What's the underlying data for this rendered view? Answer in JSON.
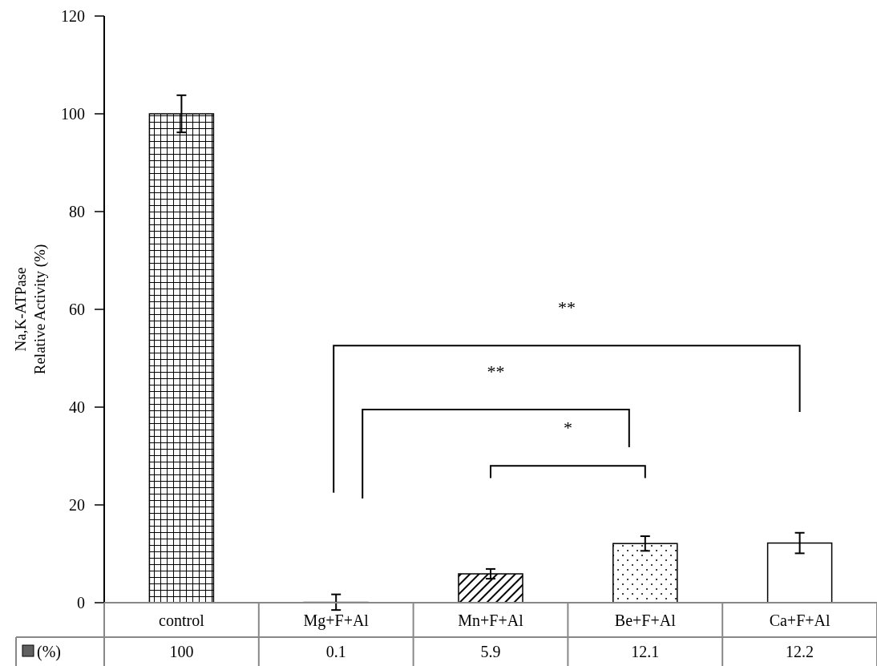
{
  "chart_data": {
    "type": "bar",
    "ylabel": "Na,K-ATPase\nRelative Activity (%)",
    "categories": [
      "control",
      "Mg+F+Al",
      "Mn+F+Al",
      "Be+F+Al",
      "Ca+F+Al"
    ],
    "values": [
      100,
      0.1,
      5.9,
      12.1,
      12.2
    ],
    "errors": [
      3.8,
      1.6,
      1.0,
      1.5,
      2.1
    ],
    "colors": [
      "#000000",
      "#808080",
      "#000000",
      "#000000",
      "#ffffff"
    ],
    "ylim": [
      0,
      120
    ],
    "yticks": [
      0,
      20,
      40,
      60,
      80,
      100,
      120
    ],
    "data_labels": true,
    "value_labels": [
      "100",
      "0.1",
      "5.9",
      "12.1",
      "12.2"
    ],
    "legend_title": "(%)",
    "annotations": [
      "**",
      "**",
      "*"
    ]
  }
}
